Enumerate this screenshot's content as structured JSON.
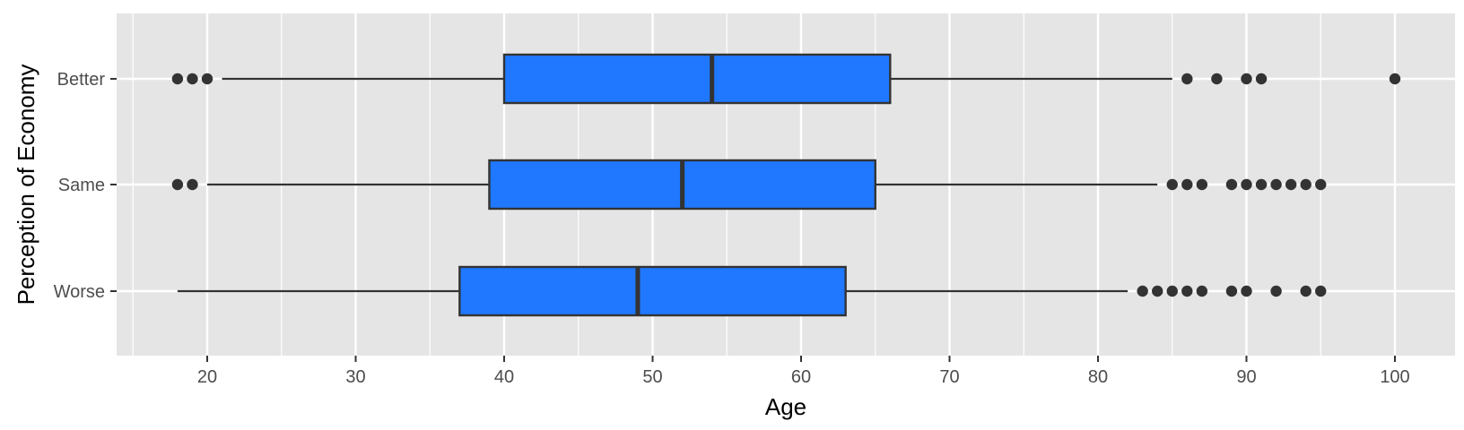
{
  "chart_data": {
    "type": "boxplot",
    "orientation": "horizontal",
    "xlabel": "Age",
    "ylabel": "Perception of Economy",
    "xlim": [
      14.5,
      104
    ],
    "x_ticks": [
      20,
      30,
      40,
      50,
      60,
      70,
      80,
      90,
      100
    ],
    "x_minor_ticks": [
      15,
      25,
      35,
      45,
      55,
      65,
      75,
      85,
      95
    ],
    "grid": true,
    "colors": {
      "box_fill": "#1F78FF",
      "box_stroke": "#333333",
      "panel_bg": "#E5E5E5",
      "grid": "#FFFFFF"
    },
    "categories": [
      "Better",
      "Same",
      "Worse"
    ],
    "boxes": [
      {
        "label": "Better",
        "whisker_low": 21,
        "q1": 40,
        "median": 54,
        "q3": 66,
        "whisker_high": 85,
        "outliers": [
          18,
          19,
          20,
          86,
          88,
          90,
          91,
          100
        ]
      },
      {
        "label": "Same",
        "whisker_low": 20,
        "q1": 39,
        "median": 52,
        "q3": 65,
        "whisker_high": 84,
        "outliers": [
          18,
          19,
          85,
          86,
          87,
          89,
          90,
          91,
          92,
          93,
          94,
          95
        ]
      },
      {
        "label": "Worse",
        "whisker_low": 18,
        "q1": 37,
        "median": 49,
        "q3": 63,
        "whisker_high": 82,
        "outliers": [
          83,
          84,
          85,
          86,
          87,
          89,
          90,
          92,
          94,
          95
        ]
      }
    ]
  }
}
